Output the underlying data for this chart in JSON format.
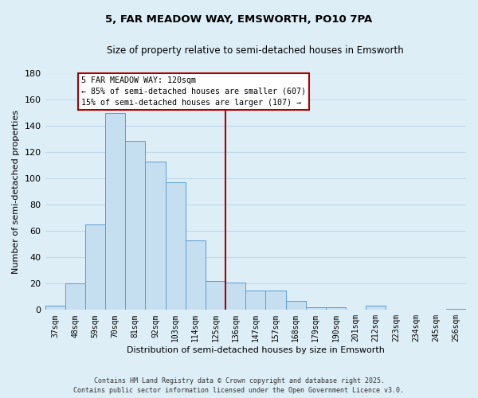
{
  "title": "5, FAR MEADOW WAY, EMSWORTH, PO10 7PA",
  "subtitle": "Size of property relative to semi-detached houses in Emsworth",
  "xlabel": "Distribution of semi-detached houses by size in Emsworth",
  "ylabel": "Number of semi-detached properties",
  "bar_labels": [
    "37sqm",
    "48sqm",
    "59sqm",
    "70sqm",
    "81sqm",
    "92sqm",
    "103sqm",
    "114sqm",
    "125sqm",
    "136sqm",
    "147sqm",
    "157sqm",
    "168sqm",
    "179sqm",
    "190sqm",
    "201sqm",
    "212sqm",
    "223sqm",
    "234sqm",
    "245sqm",
    "256sqm"
  ],
  "bar_values": [
    3,
    20,
    65,
    150,
    129,
    113,
    97,
    53,
    22,
    21,
    15,
    15,
    7,
    2,
    2,
    0,
    3,
    0,
    0,
    0,
    1
  ],
  "bar_color": "#c5dff0",
  "bar_edge_color": "#5b9bd5",
  "background_color": "#ddeef7",
  "plot_bg_color": "#ddeef7",
  "grid_color": "#b0cfe0",
  "ylim": [
    0,
    180
  ],
  "yticks": [
    0,
    20,
    40,
    60,
    80,
    100,
    120,
    140,
    160,
    180
  ],
  "property_line_x": 8.5,
  "annotation_title": "5 FAR MEADOW WAY: 120sqm",
  "annotation_line1": "← 85% of semi-detached houses are smaller (607)",
  "annotation_line2": "15% of semi-detached houses are larger (107) →",
  "annotation_box_color": "#ffffff",
  "annotation_box_edge": "#aa0000",
  "vline_color": "#aa0000",
  "footer_line1": "Contains HM Land Registry data © Crown copyright and database right 2025.",
  "footer_line2": "Contains public sector information licensed under the Open Government Licence v3.0."
}
